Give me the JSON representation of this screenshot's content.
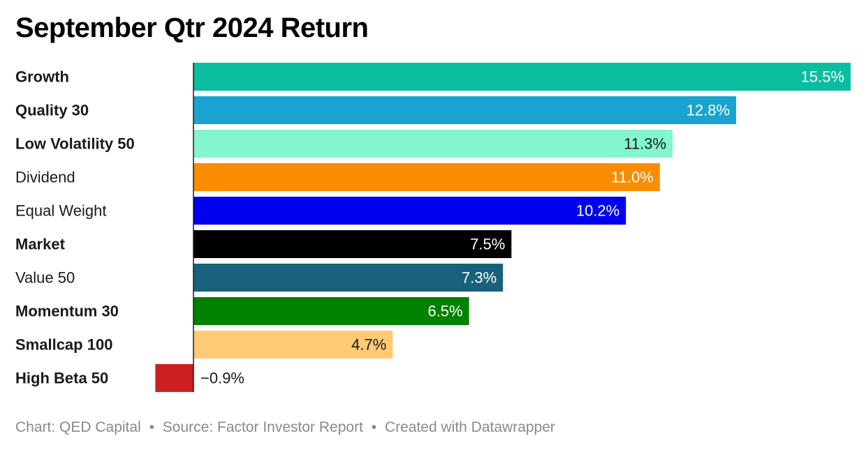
{
  "chart_data": {
    "type": "bar",
    "orientation": "horizontal",
    "title": "September Qtr 2024 Return",
    "categories": [
      "Growth",
      "Quality 30",
      "Low Volatility 50",
      "Dividend",
      "Equal Weight",
      "Market",
      "Value 50",
      "Momentum 30",
      "Smallcap 100",
      "High Beta 50"
    ],
    "values": [
      15.5,
      12.8,
      11.3,
      11.0,
      10.2,
      7.5,
      7.3,
      6.5,
      4.7,
      -0.9
    ],
    "value_labels": [
      "15.5%",
      "12.8%",
      "11.3%",
      "11.0%",
      "10.2%",
      "7.5%",
      "7.3%",
      "6.5%",
      "4.7%",
      "−0.9%"
    ],
    "label_bold": [
      true,
      true,
      true,
      false,
      false,
      true,
      false,
      true,
      true,
      true
    ],
    "colors": [
      "#0bbd9f",
      "#1aa3d1",
      "#83f5cf",
      "#fa8c00",
      "#0000f0",
      "#000000",
      "#17617c",
      "#008100",
      "#ffca76",
      "#cc1f1f"
    ],
    "value_label_colors": [
      "#ffffff",
      "#ffffff",
      "#1a1a1a",
      "#ffffff",
      "#ffffff",
      "#ffffff",
      "#ffffff",
      "#ffffff",
      "#1a1a1a",
      "#1a1a1a"
    ],
    "xlim": [
      -0.9,
      15.5
    ],
    "xlabel": "",
    "ylabel": "",
    "grid": false
  },
  "footer": {
    "chart_credit": "Chart: QED Capital",
    "separator": "•",
    "source": "Source: Factor Investor Report",
    "created_with": "Created with Datawrapper"
  }
}
